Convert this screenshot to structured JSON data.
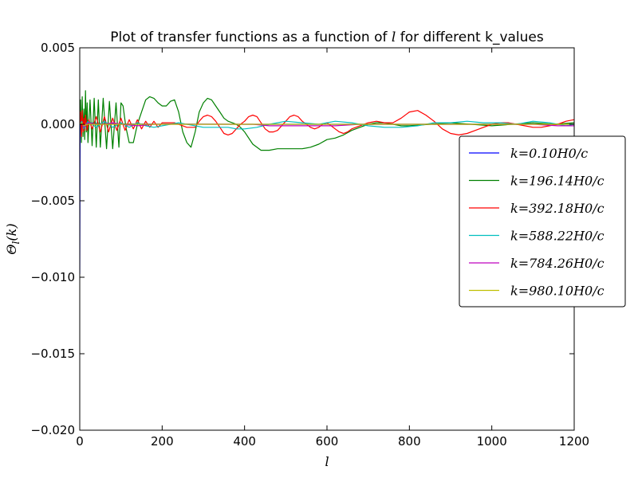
{
  "chart_data": {
    "type": "line",
    "title": "Plot of transfer functions as a function of l for different k_values",
    "xlabel": "l",
    "ylabel": "Θl(k)",
    "xlim": [
      0,
      1200
    ],
    "ylim": [
      -0.02,
      0.005
    ],
    "xticks": [
      "0",
      "200",
      "400",
      "600",
      "800",
      "1000",
      "1200"
    ],
    "yticks": [
      "0.005",
      "0.000",
      "−0.005",
      "−0.010",
      "−0.015",
      "−0.020"
    ],
    "grid": false,
    "legend_position": "right",
    "series": [
      {
        "name": "k=0.10H0/c",
        "color": "#0000ff",
        "x": [
          0,
          0.5,
          1,
          2,
          3,
          5,
          8,
          12,
          20,
          40,
          100,
          200,
          400,
          600,
          800,
          1000,
          1200
        ],
        "y": [
          -0.0098,
          -0.003,
          0.0003,
          0.0008,
          0.0006,
          0.0004,
          0.0003,
          0.0002,
          0.0001,
          5e-05,
          2e-05,
          1e-05,
          0.0,
          0.0,
          0.0,
          0.0,
          0.0
        ]
      },
      {
        "name": "k=196.14H0/c",
        "color": "#008000",
        "x": [
          0,
          2,
          4,
          6,
          8,
          10,
          12,
          14,
          16,
          18,
          20,
          25,
          30,
          35,
          40,
          45,
          50,
          57,
          65,
          72,
          80,
          88,
          95,
          100,
          105,
          112,
          120,
          130,
          140,
          150,
          160,
          170,
          180,
          190,
          200,
          210,
          220,
          230,
          240,
          250,
          260,
          270,
          280,
          290,
          300,
          310,
          320,
          330,
          340,
          350,
          360,
          370,
          380,
          390,
          400,
          420,
          440,
          460,
          480,
          500,
          520,
          540,
          560,
          580,
          600,
          620,
          640,
          660,
          680,
          700,
          720,
          740,
          760,
          780,
          800,
          850,
          900,
          950,
          1000,
          1050,
          1100,
          1150,
          1200
        ],
        "y": [
          0.0,
          0.0016,
          -0.0012,
          0.0018,
          -0.0008,
          0.001,
          -0.001,
          0.0022,
          -0.0005,
          0.0014,
          -0.0012,
          0.0016,
          -0.0014,
          0.0017,
          -0.0015,
          0.0016,
          -0.0015,
          0.0017,
          -0.0016,
          0.0015,
          -0.0016,
          0.0014,
          -0.0015,
          0.0014,
          0.0012,
          -0.0002,
          -0.0012,
          -0.0012,
          0.0,
          0.0008,
          0.0016,
          0.0018,
          0.0017,
          0.0014,
          0.0012,
          0.0012,
          0.0015,
          0.0016,
          0.0008,
          -0.0005,
          -0.0012,
          -0.0015,
          -0.0005,
          0.0008,
          0.0014,
          0.0017,
          0.0016,
          0.0012,
          0.0008,
          0.0004,
          0.0002,
          0.0001,
          0.0,
          -0.0002,
          -0.0005,
          -0.0013,
          -0.0017,
          -0.0017,
          -0.0016,
          -0.0016,
          -0.0016,
          -0.0016,
          -0.0015,
          -0.0013,
          -0.001,
          -0.0009,
          -0.0007,
          -0.0004,
          -0.0002,
          0.0,
          0.0001,
          0.0001,
          0.0,
          -0.0001,
          -0.0001,
          0.0,
          0.0001,
          0.0,
          -0.0001,
          0.0,
          0.0001,
          0.0,
          0.0001
        ]
      },
      {
        "name": "k=392.18H0/c",
        "color": "#ff0000",
        "x": [
          0,
          2,
          4,
          6,
          8,
          10,
          12,
          14,
          18,
          22,
          30,
          40,
          50,
          60,
          70,
          80,
          90,
          100,
          110,
          120,
          130,
          140,
          150,
          160,
          170,
          180,
          190,
          200,
          210,
          220,
          230,
          240,
          250,
          260,
          270,
          280,
          290,
          300,
          310,
          320,
          330,
          340,
          350,
          360,
          370,
          380,
          390,
          400,
          410,
          420,
          430,
          440,
          450,
          460,
          470,
          480,
          490,
          500,
          510,
          520,
          530,
          540,
          550,
          560,
          570,
          580,
          590,
          600,
          610,
          620,
          630,
          640,
          650,
          660,
          680,
          700,
          720,
          740,
          760,
          780,
          800,
          820,
          840,
          860,
          880,
          900,
          920,
          940,
          960,
          980,
          1000,
          1020,
          1040,
          1060,
          1080,
          1100,
          1120,
          1140,
          1160,
          1180,
          1200
        ],
        "y": [
          0.0,
          0.0008,
          -0.0008,
          0.0009,
          -0.0005,
          0.0004,
          -0.0004,
          0.0006,
          -0.0004,
          0.0003,
          -0.0003,
          0.0005,
          -0.0005,
          0.0005,
          -0.0005,
          0.0004,
          -0.0004,
          0.0004,
          -0.0004,
          0.0003,
          -0.0003,
          0.0003,
          -0.0003,
          0.0002,
          -0.0002,
          0.0002,
          -0.0002,
          0.0001,
          0.0001,
          0.0001,
          0.0001,
          0.0,
          -0.0001,
          -0.0002,
          -0.0002,
          -0.0002,
          0.0002,
          0.0005,
          0.0006,
          0.0005,
          0.0002,
          -0.0002,
          -0.0006,
          -0.0007,
          -0.0006,
          -0.0003,
          0.0,
          0.0002,
          0.0005,
          0.0006,
          0.0005,
          0.0001,
          -0.0003,
          -0.0005,
          -0.0005,
          -0.0004,
          -0.0001,
          0.0002,
          0.0005,
          0.0006,
          0.0005,
          0.0002,
          0.0,
          -0.0002,
          -0.0003,
          -0.0002,
          0.0,
          0.0001,
          -0.0001,
          -0.0003,
          -0.0005,
          -0.0006,
          -0.0005,
          -0.0003,
          -0.0001,
          0.0001,
          0.0002,
          0.0001,
          0.0001,
          0.0004,
          0.0008,
          0.0009,
          0.0006,
          0.0002,
          -0.0003,
          -0.0006,
          -0.0007,
          -0.0006,
          -0.0004,
          -0.0002,
          0.0,
          0.0001,
          0.0001,
          0.0,
          -0.0001,
          -0.0002,
          -0.0002,
          -0.0001,
          0.0,
          0.0002,
          0.0003
        ]
      },
      {
        "name": "k=588.22H0/c",
        "color": "#00bfbf",
        "x": [
          0,
          5,
          10,
          20,
          40,
          60,
          80,
          100,
          120,
          140,
          160,
          180,
          200,
          220,
          240,
          260,
          280,
          300,
          320,
          340,
          360,
          380,
          400,
          430,
          460,
          500,
          540,
          580,
          620,
          660,
          700,
          740,
          780,
          820,
          860,
          900,
          940,
          980,
          1020,
          1060,
          1100,
          1140,
          1180,
          1200
        ],
        "y": [
          0.0,
          0.0002,
          -0.0003,
          0.0002,
          -0.0002,
          0.0002,
          -0.0002,
          0.0001,
          -0.0002,
          0.0001,
          -0.0001,
          -0.0002,
          -0.0001,
          0.0,
          0.0001,
          0.0,
          -0.0001,
          -0.0002,
          -0.0002,
          -0.0002,
          -0.0002,
          -0.0003,
          -0.0003,
          -0.0002,
          0.0,
          0.0002,
          0.0001,
          0.0,
          0.0002,
          0.0001,
          -0.0001,
          -0.0002,
          -0.0002,
          -0.0001,
          0.0001,
          0.0001,
          0.0002,
          0.0001,
          0.0001,
          0.0,
          0.0002,
          0.0001,
          -0.0001,
          0.0
        ]
      },
      {
        "name": "k=784.26H0/c",
        "color": "#bf00bf",
        "x": [
          0,
          5,
          10,
          20,
          40,
          60,
          80,
          100,
          140,
          180,
          220,
          260,
          300,
          340,
          380,
          420,
          460,
          500,
          560,
          620,
          680,
          740,
          800,
          860,
          920,
          980,
          1040,
          1100,
          1160,
          1200
        ],
        "y": [
          0.0,
          0.0001,
          -0.0002,
          0.0001,
          0.0,
          0.0,
          0.0001,
          0.0,
          -0.0001,
          0.0,
          0.0,
          0.0,
          0.0,
          0.0,
          0.0,
          0.0,
          -0.0001,
          -0.0001,
          -0.0001,
          -0.0001,
          0.0,
          0.0,
          0.0,
          0.0,
          0.0,
          0.0,
          0.0,
          0.0,
          -0.0001,
          -0.0001
        ]
      },
      {
        "name": "k=980.10H0/c",
        "color": "#bfbf00",
        "x": [
          0,
          5,
          10,
          20,
          50,
          100,
          200,
          300,
          400,
          500,
          600,
          700,
          800,
          900,
          1000,
          1100,
          1200
        ],
        "y": [
          0.0,
          0.0001,
          -0.0001,
          0.0,
          0.0,
          0.0,
          0.0,
          0.0,
          0.0,
          0.0,
          0.0,
          0.0,
          0.0,
          0.0,
          0.0,
          0.0,
          0.0
        ]
      }
    ]
  }
}
